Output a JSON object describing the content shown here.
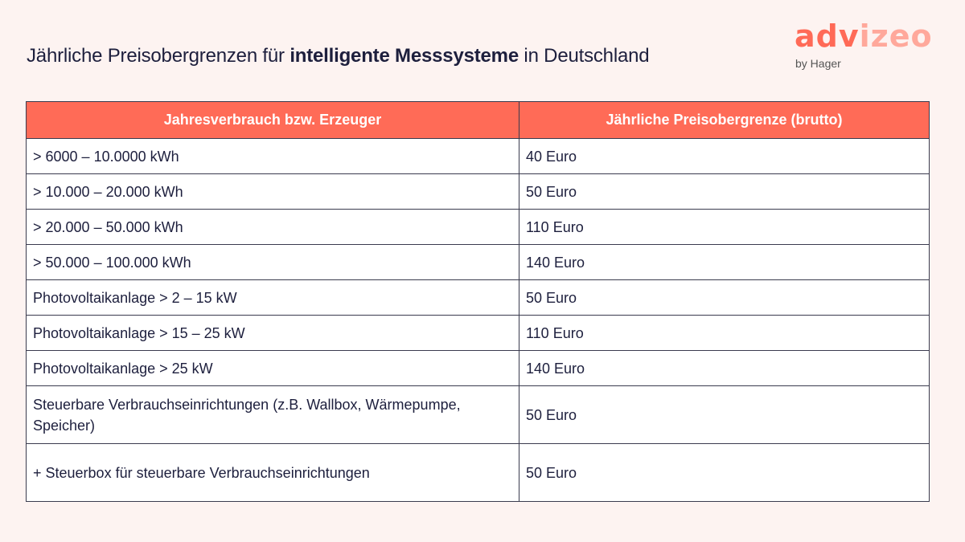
{
  "title": {
    "prefix": "Jährliche Preisobergrenzen für ",
    "bold": "intelligente Messsysteme",
    "suffix": " in Deutschland"
  },
  "logo": {
    "word_solid": "adv",
    "word_light": "izeo",
    "byline": "by Hager"
  },
  "colors": {
    "accent": "#ff6b57",
    "text": "#1d1f3d",
    "background": "#fdf3f1"
  },
  "table": {
    "headers": [
      "Jahresverbrauch bzw. Erzeuger",
      "Jährliche Preisobergrenze (brutto)"
    ],
    "rows": [
      [
        "> 6000 – 10.0000 kWh",
        "40 Euro"
      ],
      [
        "> 10.000 – 20.000 kWh",
        "50 Euro"
      ],
      [
        "> 20.000 – 50.000 kWh",
        "110 Euro"
      ],
      [
        "> 50.000 – 100.000 kWh",
        "140 Euro"
      ],
      [
        "Photovoltaikanlage > 2 – 15 kW",
        "50 Euro"
      ],
      [
        "Photovoltaikanlage > 15 – 25 kW",
        "110 Euro"
      ],
      [
        "Photovoltaikanlage > 25 kW",
        "140 Euro"
      ],
      [
        "Steuerbare Verbrauchseinrichtungen (z.B. Wallbox, Wärmepumpe, Speicher)",
        "50 Euro"
      ],
      [
        "+ Steuerbox für steuerbare Verbrauchseinrichtungen",
        "50 Euro"
      ]
    ]
  }
}
